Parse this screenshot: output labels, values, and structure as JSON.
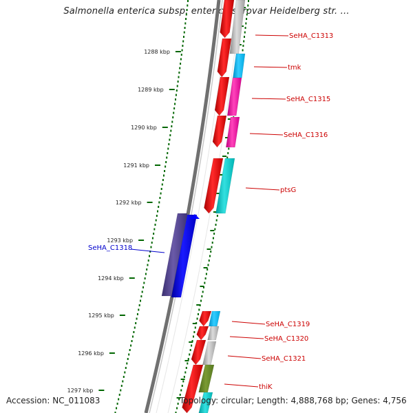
{
  "title": "Salmonella enterica subsp. enterica serovar Heidelberg str. ...",
  "footer": {
    "accession": "Accession: NC_011083",
    "info": "Topology: circular; Length: 4,888,768 bp; Genes: 4,756"
  },
  "ruler": {
    "ticks": [
      "1288 kbp",
      "1289 kbp",
      "1290 kbp",
      "1291 kbp",
      "1292 kbp",
      "1293 kbp",
      "1294 kbp",
      "1295 kbp",
      "1296 kbp",
      "1297 kbp"
    ]
  },
  "genes": [
    {
      "label": "SeHA_C1313",
      "color": "#cc0000"
    },
    {
      "label": "tmk",
      "color": "#cc0000"
    },
    {
      "label": "SeHA_C1315",
      "color": "#cc0000"
    },
    {
      "label": "SeHA_C1316",
      "color": "#cc0000"
    },
    {
      "label": "ptsG",
      "color": "#cc0000"
    },
    {
      "label": "SeHA_C1318",
      "color": "#0000cc"
    },
    {
      "label": "SeHA_C1319",
      "color": "#cc0000"
    },
    {
      "label": "SeHA_C1320",
      "color": "#cc0000"
    },
    {
      "label": "SeHA_C1321",
      "color": "#cc0000"
    },
    {
      "label": "thiK",
      "color": "#cc0000"
    }
  ],
  "colors": {
    "forward_cds": "#ff0000",
    "reverse_cds": "#0000ff",
    "backbone": "#808080",
    "ruler_ticks": "#006600"
  }
}
